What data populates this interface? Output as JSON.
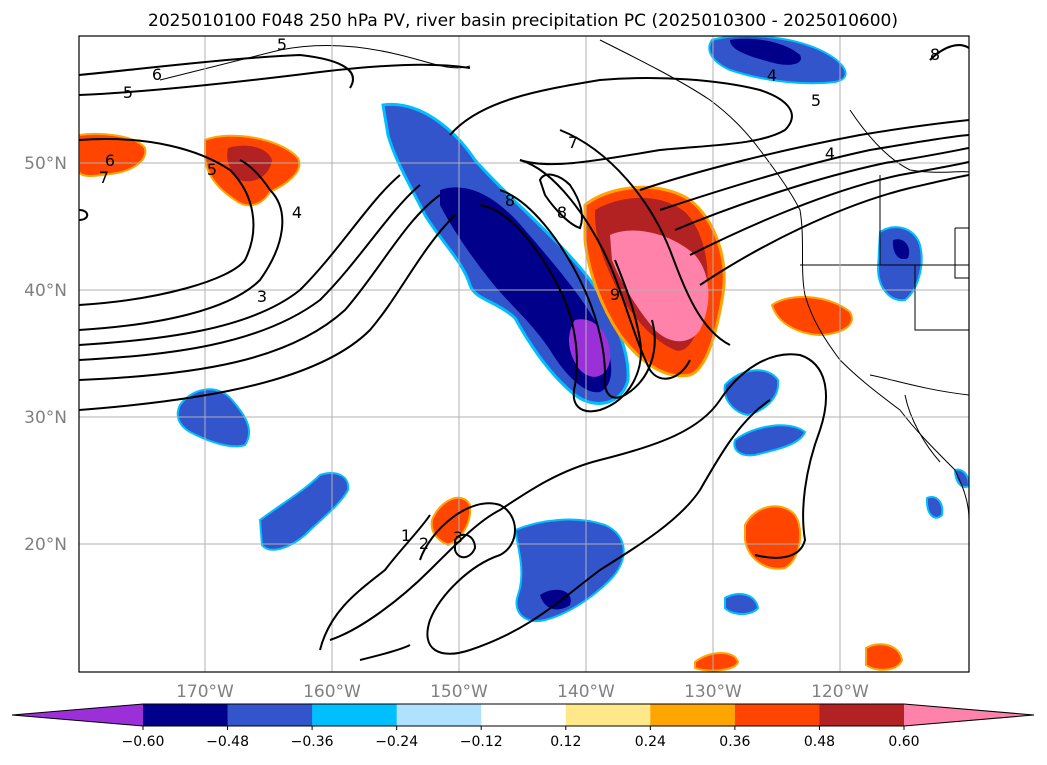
{
  "title": "2025010100 F048 250 hPa PV, river basin precipitation PC (2025010300 - 2025010600)",
  "map": {
    "lat_labels": [
      "50°N",
      "40°N",
      "30°N",
      "20°N"
    ],
    "lon_labels": [
      "170°W",
      "160°W",
      "150°W",
      "140°W",
      "130°W",
      "120°W"
    ],
    "gridlines": true
  },
  "colorbar": {
    "extend": "both",
    "colors": [
      "#9b30d9",
      "#00008b",
      "#3355cc",
      "#00bfff",
      "#b0e2ff",
      "#ffffff",
      "#ffe88a",
      "#ffa500",
      "#ff4500",
      "#b22222",
      "#ff82ab"
    ],
    "tick_labels": [
      "−0.60",
      "−0.48",
      "−0.36",
      "−0.24",
      "−0.12",
      "0.12",
      "0.24",
      "0.36",
      "0.48",
      "0.60"
    ]
  },
  "contour_labels": [
    "5",
    "6",
    "5",
    "6",
    "7",
    "5",
    "4",
    "3",
    "8",
    "7",
    "8",
    "9",
    "4",
    "5",
    "4",
    "1",
    "2",
    "3",
    "8"
  ]
}
